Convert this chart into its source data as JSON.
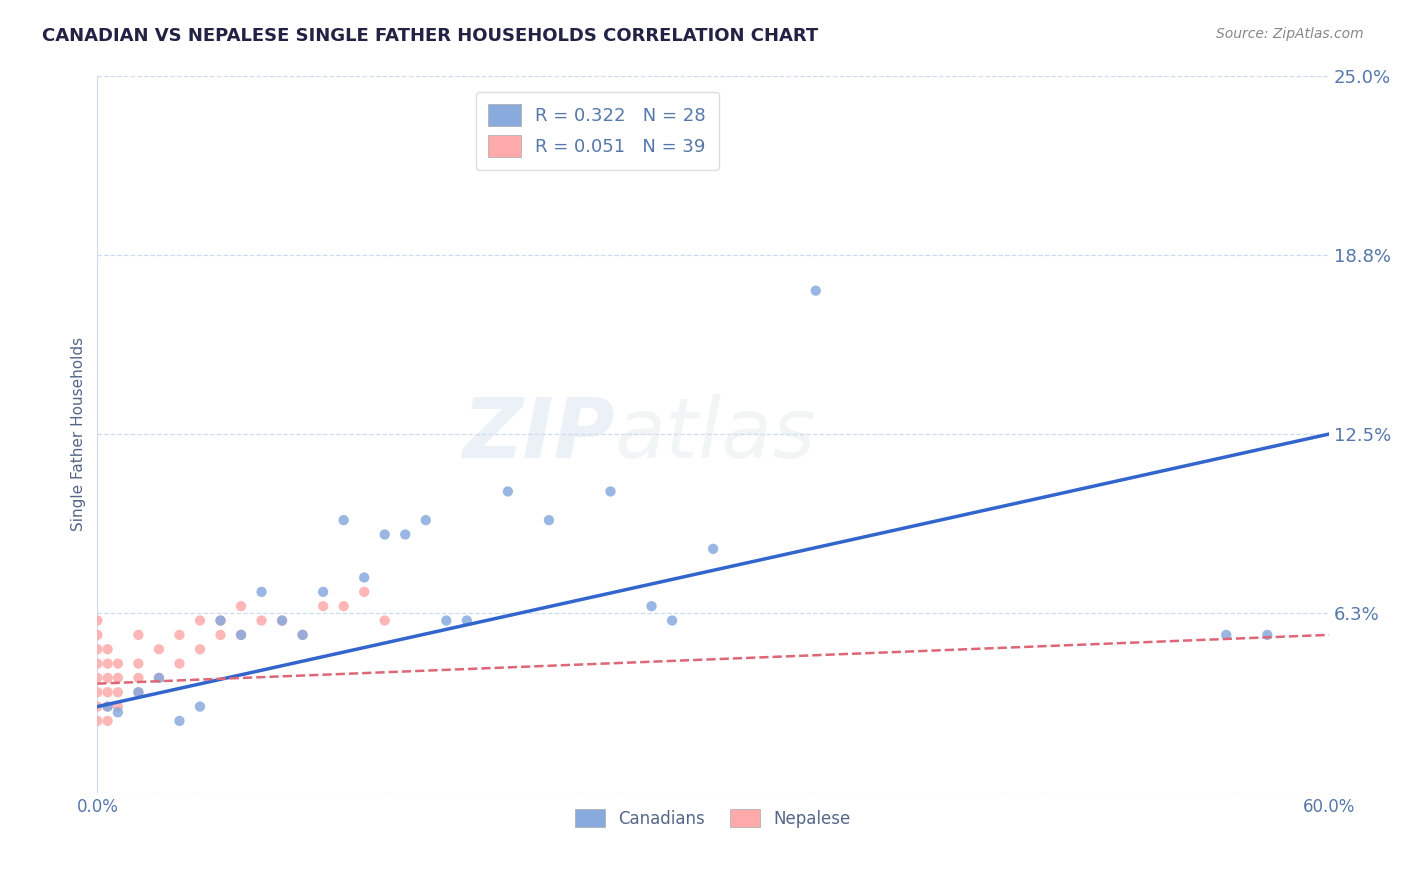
{
  "title": "CANADIAN VS NEPALESE SINGLE FATHER HOUSEHOLDS CORRELATION CHART",
  "source_text": "Source: ZipAtlas.com",
  "ylabel": "Single Father Households",
  "watermark_zip": "ZIP",
  "watermark_atlas": "atlas",
  "xlim": [
    0.0,
    0.6
  ],
  "ylim": [
    0.0,
    0.25
  ],
  "yticks": [
    0.0,
    0.0625,
    0.125,
    0.1875,
    0.25
  ],
  "ytick_labels": [
    "",
    "6.3%",
    "12.5%",
    "18.8%",
    "25.0%"
  ],
  "xticks": [
    0.0,
    0.1,
    0.2,
    0.3,
    0.4,
    0.5,
    0.6
  ],
  "xtick_labels": [
    "0.0%",
    "",
    "",
    "",
    "",
    "",
    "60.0%"
  ],
  "canadian_R": 0.322,
  "canadian_N": 28,
  "nepalese_R": 0.051,
  "nepalese_N": 39,
  "canadian_color": "#88aadd",
  "nepalese_color": "#ffaaaa",
  "canadian_line_color": "#3366cc",
  "nepalese_line_color": "#dd6677",
  "legend_canadian_label": "Canadians",
  "legend_nepalese_label": "Nepalese",
  "title_color": "#222244",
  "axis_label_color": "#556688",
  "tick_color": "#5577aa",
  "gridline_color": "#ccddee",
  "background_color": "#ffffff",
  "canadian_x": [
    0.005,
    0.01,
    0.02,
    0.03,
    0.04,
    0.05,
    0.06,
    0.07,
    0.08,
    0.09,
    0.1,
    0.11,
    0.12,
    0.13,
    0.14,
    0.15,
    0.16,
    0.17,
    0.18,
    0.2,
    0.22,
    0.25,
    0.27,
    0.28,
    0.3,
    0.35,
    0.55,
    0.57
  ],
  "canadian_y": [
    0.03,
    0.028,
    0.035,
    0.04,
    0.025,
    0.03,
    0.06,
    0.055,
    0.07,
    0.06,
    0.055,
    0.07,
    0.095,
    0.075,
    0.09,
    0.09,
    0.095,
    0.06,
    0.06,
    0.105,
    0.095,
    0.105,
    0.065,
    0.06,
    0.085,
    0.175,
    0.055,
    0.055
  ],
  "nepalese_x": [
    0.0,
    0.0,
    0.0,
    0.0,
    0.0,
    0.0,
    0.0,
    0.0,
    0.005,
    0.005,
    0.005,
    0.005,
    0.005,
    0.005,
    0.01,
    0.01,
    0.01,
    0.01,
    0.02,
    0.02,
    0.02,
    0.02,
    0.03,
    0.03,
    0.04,
    0.04,
    0.05,
    0.05,
    0.06,
    0.06,
    0.07,
    0.07,
    0.08,
    0.09,
    0.1,
    0.11,
    0.12,
    0.13,
    0.14
  ],
  "nepalese_y": [
    0.025,
    0.03,
    0.035,
    0.04,
    0.045,
    0.05,
    0.055,
    0.06,
    0.025,
    0.03,
    0.035,
    0.04,
    0.045,
    0.05,
    0.03,
    0.035,
    0.04,
    0.045,
    0.035,
    0.04,
    0.045,
    0.055,
    0.04,
    0.05,
    0.045,
    0.055,
    0.05,
    0.06,
    0.055,
    0.06,
    0.055,
    0.065,
    0.06,
    0.06,
    0.055,
    0.065,
    0.065,
    0.07,
    0.06
  ],
  "canadian_line_x0": 0.0,
  "canadian_line_y0": 0.03,
  "canadian_line_x1": 0.6,
  "canadian_line_y1": 0.125,
  "nepalese_line_x0": 0.0,
  "nepalese_line_y0": 0.038,
  "nepalese_line_x1": 0.6,
  "nepalese_line_y1": 0.055
}
